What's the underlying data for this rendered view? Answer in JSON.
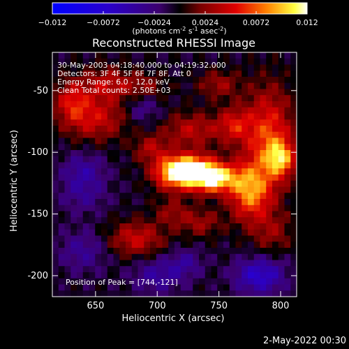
{
  "chart_data": {
    "type": "heatmap",
    "title": "Reconstructed RHESSI Image",
    "xlabel": "Heliocentric X (arcsec)",
    "ylabel": "Heliocentric Y (arcsec)",
    "xlim": [
      615,
      813
    ],
    "ylim": [
      -217,
      -19
    ],
    "x_ticks": [
      650,
      700,
      750,
      800
    ],
    "y_ticks": [
      -50,
      -100,
      -150,
      -200
    ],
    "colorbar": {
      "label_parts": [
        "(photons cm",
        "-2",
        " s",
        "-1",
        " asec",
        "-2",
        ")"
      ],
      "ticks": [
        -0.012,
        -0.0072,
        -0.0024,
        0.0024,
        0.0072,
        0.012
      ],
      "tick_labels": [
        "−0.012",
        "−0.0072",
        "−0.0024",
        "0.0024",
        "0.0072",
        "0.012"
      ],
      "range": [
        -0.012,
        0.012
      ],
      "colormap": "blue-purple-red-yellow-white"
    },
    "annotations": [
      "30-May-2003 04:18:40.000 to 04:19:32.000",
      "Detectors: 3F 4F 5F 6F 7F 8F, Att 0",
      "Energy Range: 6.0 - 12.0 keV",
      "Clean    Total counts: 2.50E+03"
    ],
    "peak_label": "Position of Peak = [744,-121]",
    "peak": {
      "x": 744,
      "y": -121
    },
    "sources": [
      {
        "x": 744,
        "y": -121,
        "sx": 14,
        "sy": 8,
        "amp": 0.0125
      },
      {
        "x": 714,
        "y": -117,
        "sx": 12,
        "sy": 9,
        "amp": 0.01
      },
      {
        "x": 729,
        "y": -112,
        "sx": 14,
        "sy": 8,
        "amp": 0.0075
      },
      {
        "x": 775,
        "y": -132,
        "sx": 12,
        "sy": 16,
        "amp": 0.0085
      },
      {
        "x": 790,
        "y": -88,
        "sx": 14,
        "sy": 28,
        "amp": 0.007
      },
      {
        "x": 762,
        "y": -78,
        "sx": 10,
        "sy": 10,
        "amp": 0.005
      },
      {
        "x": 800,
        "y": -105,
        "sx": 8,
        "sy": 10,
        "amp": 0.0075
      },
      {
        "x": 728,
        "y": -82,
        "sx": 16,
        "sy": 10,
        "amp": 0.0045
      },
      {
        "x": 695,
        "y": -97,
        "sx": 10,
        "sy": 8,
        "amp": 0.004
      },
      {
        "x": 650,
        "y": -73,
        "sx": 18,
        "sy": 12,
        "amp": 0.005
      },
      {
        "x": 660,
        "y": -45,
        "sx": 14,
        "sy": 10,
        "amp": 0.0045
      },
      {
        "x": 631,
        "y": -58,
        "sx": 10,
        "sy": 12,
        "amp": 0.005
      },
      {
        "x": 690,
        "y": -48,
        "sx": 12,
        "sy": 8,
        "amp": 0.0035
      },
      {
        "x": 750,
        "y": -45,
        "sx": 12,
        "sy": 8,
        "amp": 0.0035
      },
      {
        "x": 683,
        "y": -170,
        "sx": 16,
        "sy": 10,
        "amp": 0.005
      },
      {
        "x": 735,
        "y": -157,
        "sx": 12,
        "sy": 8,
        "amp": 0.0035
      },
      {
        "x": 793,
        "y": -165,
        "sx": 12,
        "sy": 12,
        "amp": 0.003
      },
      {
        "x": 712,
        "y": -148,
        "sx": 10,
        "sy": 8,
        "amp": 0.003
      },
      {
        "x": 640,
        "y": -115,
        "sx": 12,
        "sy": 10,
        "amp": -0.0035
      },
      {
        "x": 700,
        "y": -200,
        "sx": 14,
        "sy": 10,
        "amp": -0.0035
      },
      {
        "x": 783,
        "y": -200,
        "sx": 14,
        "sy": 10,
        "amp": -0.006
      },
      {
        "x": 640,
        "y": -180,
        "sx": 14,
        "sy": 12,
        "amp": -0.003
      },
      {
        "x": 688,
        "y": -62,
        "sx": 10,
        "sy": 10,
        "amp": -0.003
      },
      {
        "x": 723,
        "y": -190,
        "sx": 10,
        "sy": 8,
        "amp": -0.003
      },
      {
        "x": 640,
        "y": -135,
        "sx": 14,
        "sy": 10,
        "amp": -0.0025
      }
    ]
  },
  "footer_timestamp": "2-May-2022 00:30"
}
